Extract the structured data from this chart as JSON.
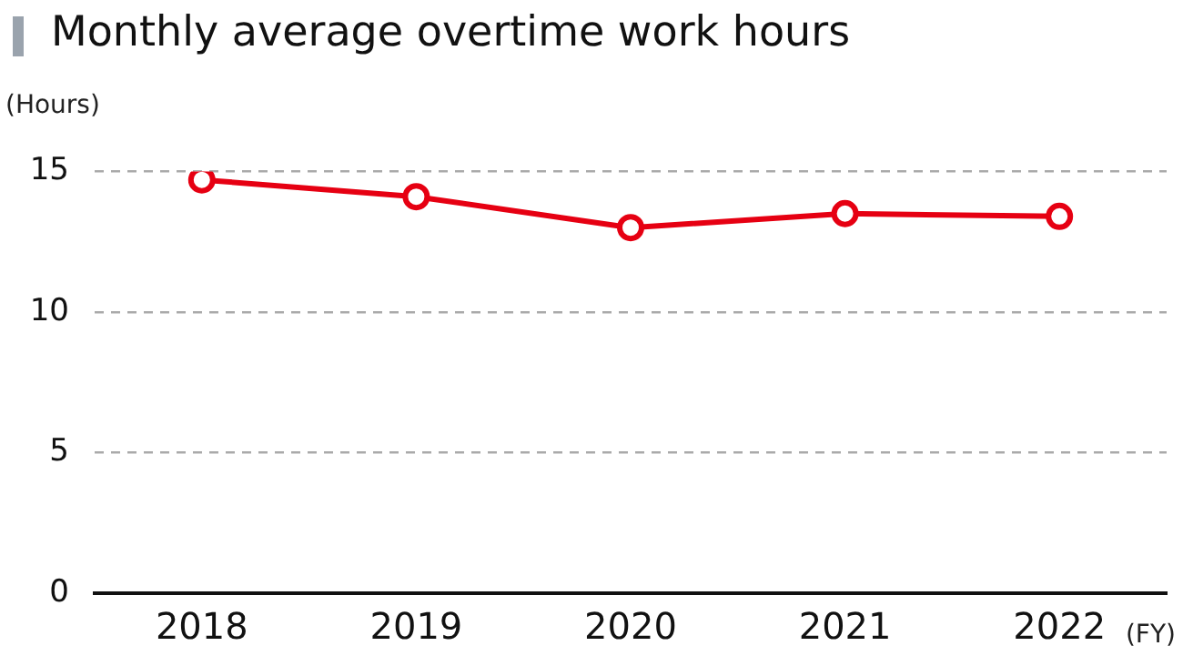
{
  "chart_data": {
    "type": "line",
    "title": "Monthly average overtime work hours",
    "ylabel": "(Hours)",
    "xlabel": "(FY)",
    "categories": [
      "2018",
      "2019",
      "2020",
      "2021",
      "2022"
    ],
    "series": [
      {
        "color": "#e60012",
        "values": [
          14.7,
          14.1,
          13.0,
          13.5,
          13.4
        ]
      }
    ],
    "ylim": [
      0,
      15
    ],
    "yticks": [
      0,
      5,
      10,
      15
    ],
    "grid": "y",
    "legend": false,
    "marker": "circle",
    "line_style": "solid"
  }
}
